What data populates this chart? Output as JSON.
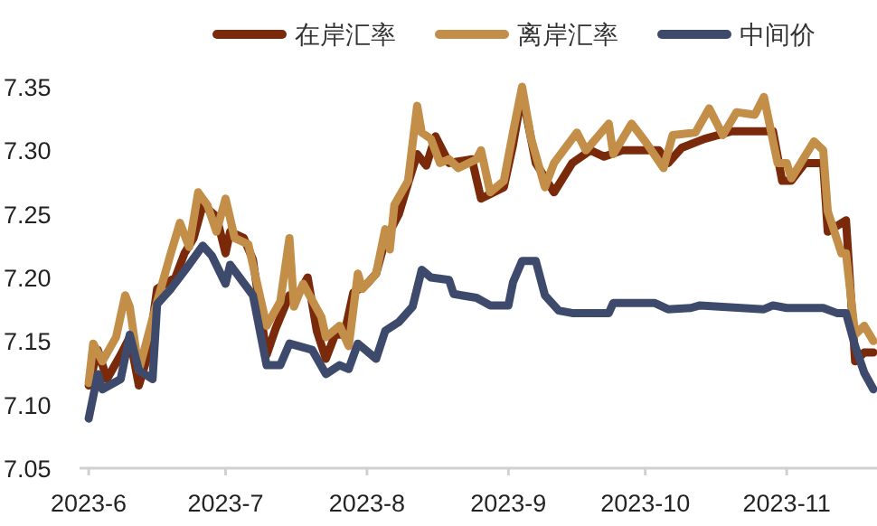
{
  "chart_data": {
    "type": "line",
    "legend": "top",
    "grid": false,
    "line_style": "solid",
    "marker": "none",
    "xlim": [
      "2023-05-30",
      "2023-11-20"
    ],
    "ylim": [
      7.05,
      7.35
    ],
    "xticks": [
      {
        "value": "2023-06-01",
        "label": "2023-6"
      },
      {
        "value": "2023-07-01",
        "label": "2023-7"
      },
      {
        "value": "2023-08-01",
        "label": "2023-8"
      },
      {
        "value": "2023-09-01",
        "label": "2023-9"
      },
      {
        "value": "2023-10-01",
        "label": "2023-10"
      },
      {
        "value": "2023-11-01",
        "label": "2023-11"
      }
    ],
    "yticks": [
      7.05,
      {
        "value": 7.1,
        "label": "7.10"
      },
      7.15,
      {
        "value": 7.2,
        "label": "7.20"
      },
      7.25,
      {
        "value": 7.3,
        "label": "7.30"
      },
      7.35
    ],
    "series": [
      {
        "name": "在岸汇率",
        "color": "#7a2a0a",
        "x": [
          "2023-06-01",
          "2023-06-03",
          "2023-06-05",
          "2023-06-08",
          "2023-06-10",
          "2023-06-12",
          "2023-06-14",
          "2023-06-16",
          "2023-06-20",
          "2023-06-22",
          "2023-06-24",
          "2023-06-26",
          "2023-06-29",
          "2023-07-01",
          "2023-07-02",
          "2023-07-05",
          "2023-07-07",
          "2023-07-10",
          "2023-07-12",
          "2023-07-15",
          "2023-07-16",
          "2023-07-19",
          "2023-07-21",
          "2023-07-23",
          "2023-07-25",
          "2023-07-27",
          "2023-07-29",
          "2023-08-01",
          "2023-08-03",
          "2023-08-05",
          "2023-08-08",
          "2023-08-10",
          "2023-08-12",
          "2023-08-14",
          "2023-08-16",
          "2023-08-19",
          "2023-08-24",
          "2023-08-26",
          "2023-08-31",
          "2023-09-02",
          "2023-09-04",
          "2023-09-07",
          "2023-09-11",
          "2023-09-15",
          "2023-09-19",
          "2023-09-22",
          "2023-09-26",
          "2023-10-04",
          "2023-10-06",
          "2023-10-09",
          "2023-10-14",
          "2023-10-20",
          "2023-10-29",
          "2023-10-31",
          "2023-11-02",
          "2023-11-05",
          "2023-11-09",
          "2023-11-10",
          "2023-11-14",
          "2023-11-16",
          "2023-11-18",
          "2023-11-20"
        ],
        "values": [
          7.115,
          7.143,
          7.12,
          7.139,
          7.153,
          7.115,
          7.139,
          7.191,
          7.2,
          7.219,
          7.231,
          7.257,
          7.248,
          7.219,
          7.236,
          7.231,
          7.214,
          7.139,
          7.16,
          7.186,
          7.181,
          7.2,
          7.158,
          7.136,
          7.155,
          7.155,
          7.188,
          7.195,
          7.203,
          7.229,
          7.25,
          7.274,
          7.297,
          7.288,
          7.311,
          7.29,
          7.293,
          7.262,
          7.271,
          7.304,
          7.345,
          7.29,
          7.267,
          7.29,
          7.3,
          7.295,
          7.3,
          7.3,
          7.29,
          7.302,
          7.309,
          7.315,
          7.315,
          7.276,
          7.276,
          7.29,
          7.29,
          7.236,
          7.245,
          7.134,
          7.141,
          7.141
        ]
      },
      {
        "name": "离岸汇率",
        "color": "#c38e48",
        "x": [
          "2023-06-01",
          "2023-06-02",
          "2023-06-04",
          "2023-06-07",
          "2023-06-09",
          "2023-06-10",
          "2023-06-12",
          "2023-06-16",
          "2023-06-19",
          "2023-06-21",
          "2023-06-23",
          "2023-06-25",
          "2023-06-27",
          "2023-06-29",
          "2023-07-01",
          "2023-07-03",
          "2023-07-06",
          "2023-07-07",
          "2023-07-10",
          "2023-07-13",
          "2023-07-15",
          "2023-07-16",
          "2023-07-18",
          "2023-07-22",
          "2023-07-23",
          "2023-07-26",
          "2023-07-28",
          "2023-07-30",
          "2023-07-31",
          "2023-08-03",
          "2023-08-05",
          "2023-08-06",
          "2023-08-07",
          "2023-08-10",
          "2023-08-12",
          "2023-08-13",
          "2023-08-15",
          "2023-08-17",
          "2023-08-19",
          "2023-08-21",
          "2023-08-25",
          "2023-08-26",
          "2023-08-28",
          "2023-08-31",
          "2023-09-02",
          "2023-09-04",
          "2023-09-06",
          "2023-09-09",
          "2023-09-11",
          "2023-09-16",
          "2023-09-18",
          "2023-09-23",
          "2023-09-24",
          "2023-09-28",
          "2023-10-01",
          "2023-10-05",
          "2023-10-07",
          "2023-10-12",
          "2023-10-15",
          "2023-10-18",
          "2023-10-21",
          "2023-10-25",
          "2023-10-27",
          "2023-10-30",
          "2023-11-01",
          "2023-11-02",
          "2023-11-07",
          "2023-11-09",
          "2023-11-10",
          "2023-11-13",
          "2023-11-14",
          "2023-11-16",
          "2023-11-18",
          "2023-11-20"
        ],
        "values": [
          7.117,
          7.148,
          7.134,
          7.153,
          7.186,
          7.177,
          7.127,
          7.181,
          7.219,
          7.243,
          7.224,
          7.267,
          7.257,
          7.236,
          7.262,
          7.231,
          7.226,
          7.21,
          7.162,
          7.181,
          7.231,
          7.177,
          7.195,
          7.169,
          7.153,
          7.162,
          7.146,
          7.203,
          7.191,
          7.203,
          7.238,
          7.222,
          7.257,
          7.276,
          7.335,
          7.314,
          7.309,
          7.29,
          7.293,
          7.286,
          7.293,
          7.3,
          7.267,
          7.276,
          7.314,
          7.35,
          7.309,
          7.271,
          7.29,
          7.314,
          7.3,
          7.321,
          7.297,
          7.321,
          7.307,
          7.286,
          7.312,
          7.314,
          7.333,
          7.312,
          7.33,
          7.328,
          7.342,
          7.29,
          7.29,
          7.278,
          7.307,
          7.3,
          7.252,
          7.219,
          7.219,
          7.155,
          7.162,
          7.15
        ]
      },
      {
        "name": "中间价",
        "color": "#3d4a6b",
        "x": [
          "2023-06-01",
          "2023-06-03",
          "2023-06-04",
          "2023-06-08",
          "2023-06-10",
          "2023-06-12",
          "2023-06-15",
          "2023-06-16",
          "2023-06-19",
          "2023-06-23",
          "2023-06-26",
          "2023-06-28",
          "2023-07-01",
          "2023-07-02",
          "2023-07-07",
          "2023-07-10",
          "2023-07-13",
          "2023-07-15",
          "2023-07-20",
          "2023-07-23",
          "2023-07-26",
          "2023-07-28",
          "2023-07-30",
          "2023-08-03",
          "2023-08-05",
          "2023-08-08",
          "2023-08-11",
          "2023-08-13",
          "2023-08-15",
          "2023-08-19",
          "2023-08-20",
          "2023-08-25",
          "2023-08-28",
          "2023-09-01",
          "2023-09-02",
          "2023-09-04",
          "2023-09-07",
          "2023-09-09",
          "2023-09-12",
          "2023-09-15",
          "2023-09-23",
          "2023-09-24",
          "2023-10-03",
          "2023-10-06",
          "2023-10-11",
          "2023-10-13",
          "2023-10-27",
          "2023-10-29",
          "2023-11-01",
          "2023-11-09",
          "2023-11-12",
          "2023-11-14",
          "2023-11-16",
          "2023-11-18",
          "2023-11-20"
        ],
        "values": [
          7.089,
          7.124,
          7.112,
          7.12,
          7.155,
          7.127,
          7.12,
          7.179,
          7.191,
          7.21,
          7.225,
          7.217,
          7.195,
          7.21,
          7.186,
          7.131,
          7.131,
          7.148,
          7.143,
          7.124,
          7.131,
          7.128,
          7.148,
          7.136,
          7.158,
          7.165,
          7.177,
          7.206,
          7.2,
          7.198,
          7.187,
          7.184,
          7.178,
          7.178,
          7.196,
          7.213,
          7.213,
          7.186,
          7.174,
          7.172,
          7.172,
          7.18,
          7.18,
          7.175,
          7.176,
          7.178,
          7.175,
          7.178,
          7.176,
          7.176,
          7.172,
          7.172,
          7.146,
          7.125,
          7.112
        ]
      }
    ]
  }
}
